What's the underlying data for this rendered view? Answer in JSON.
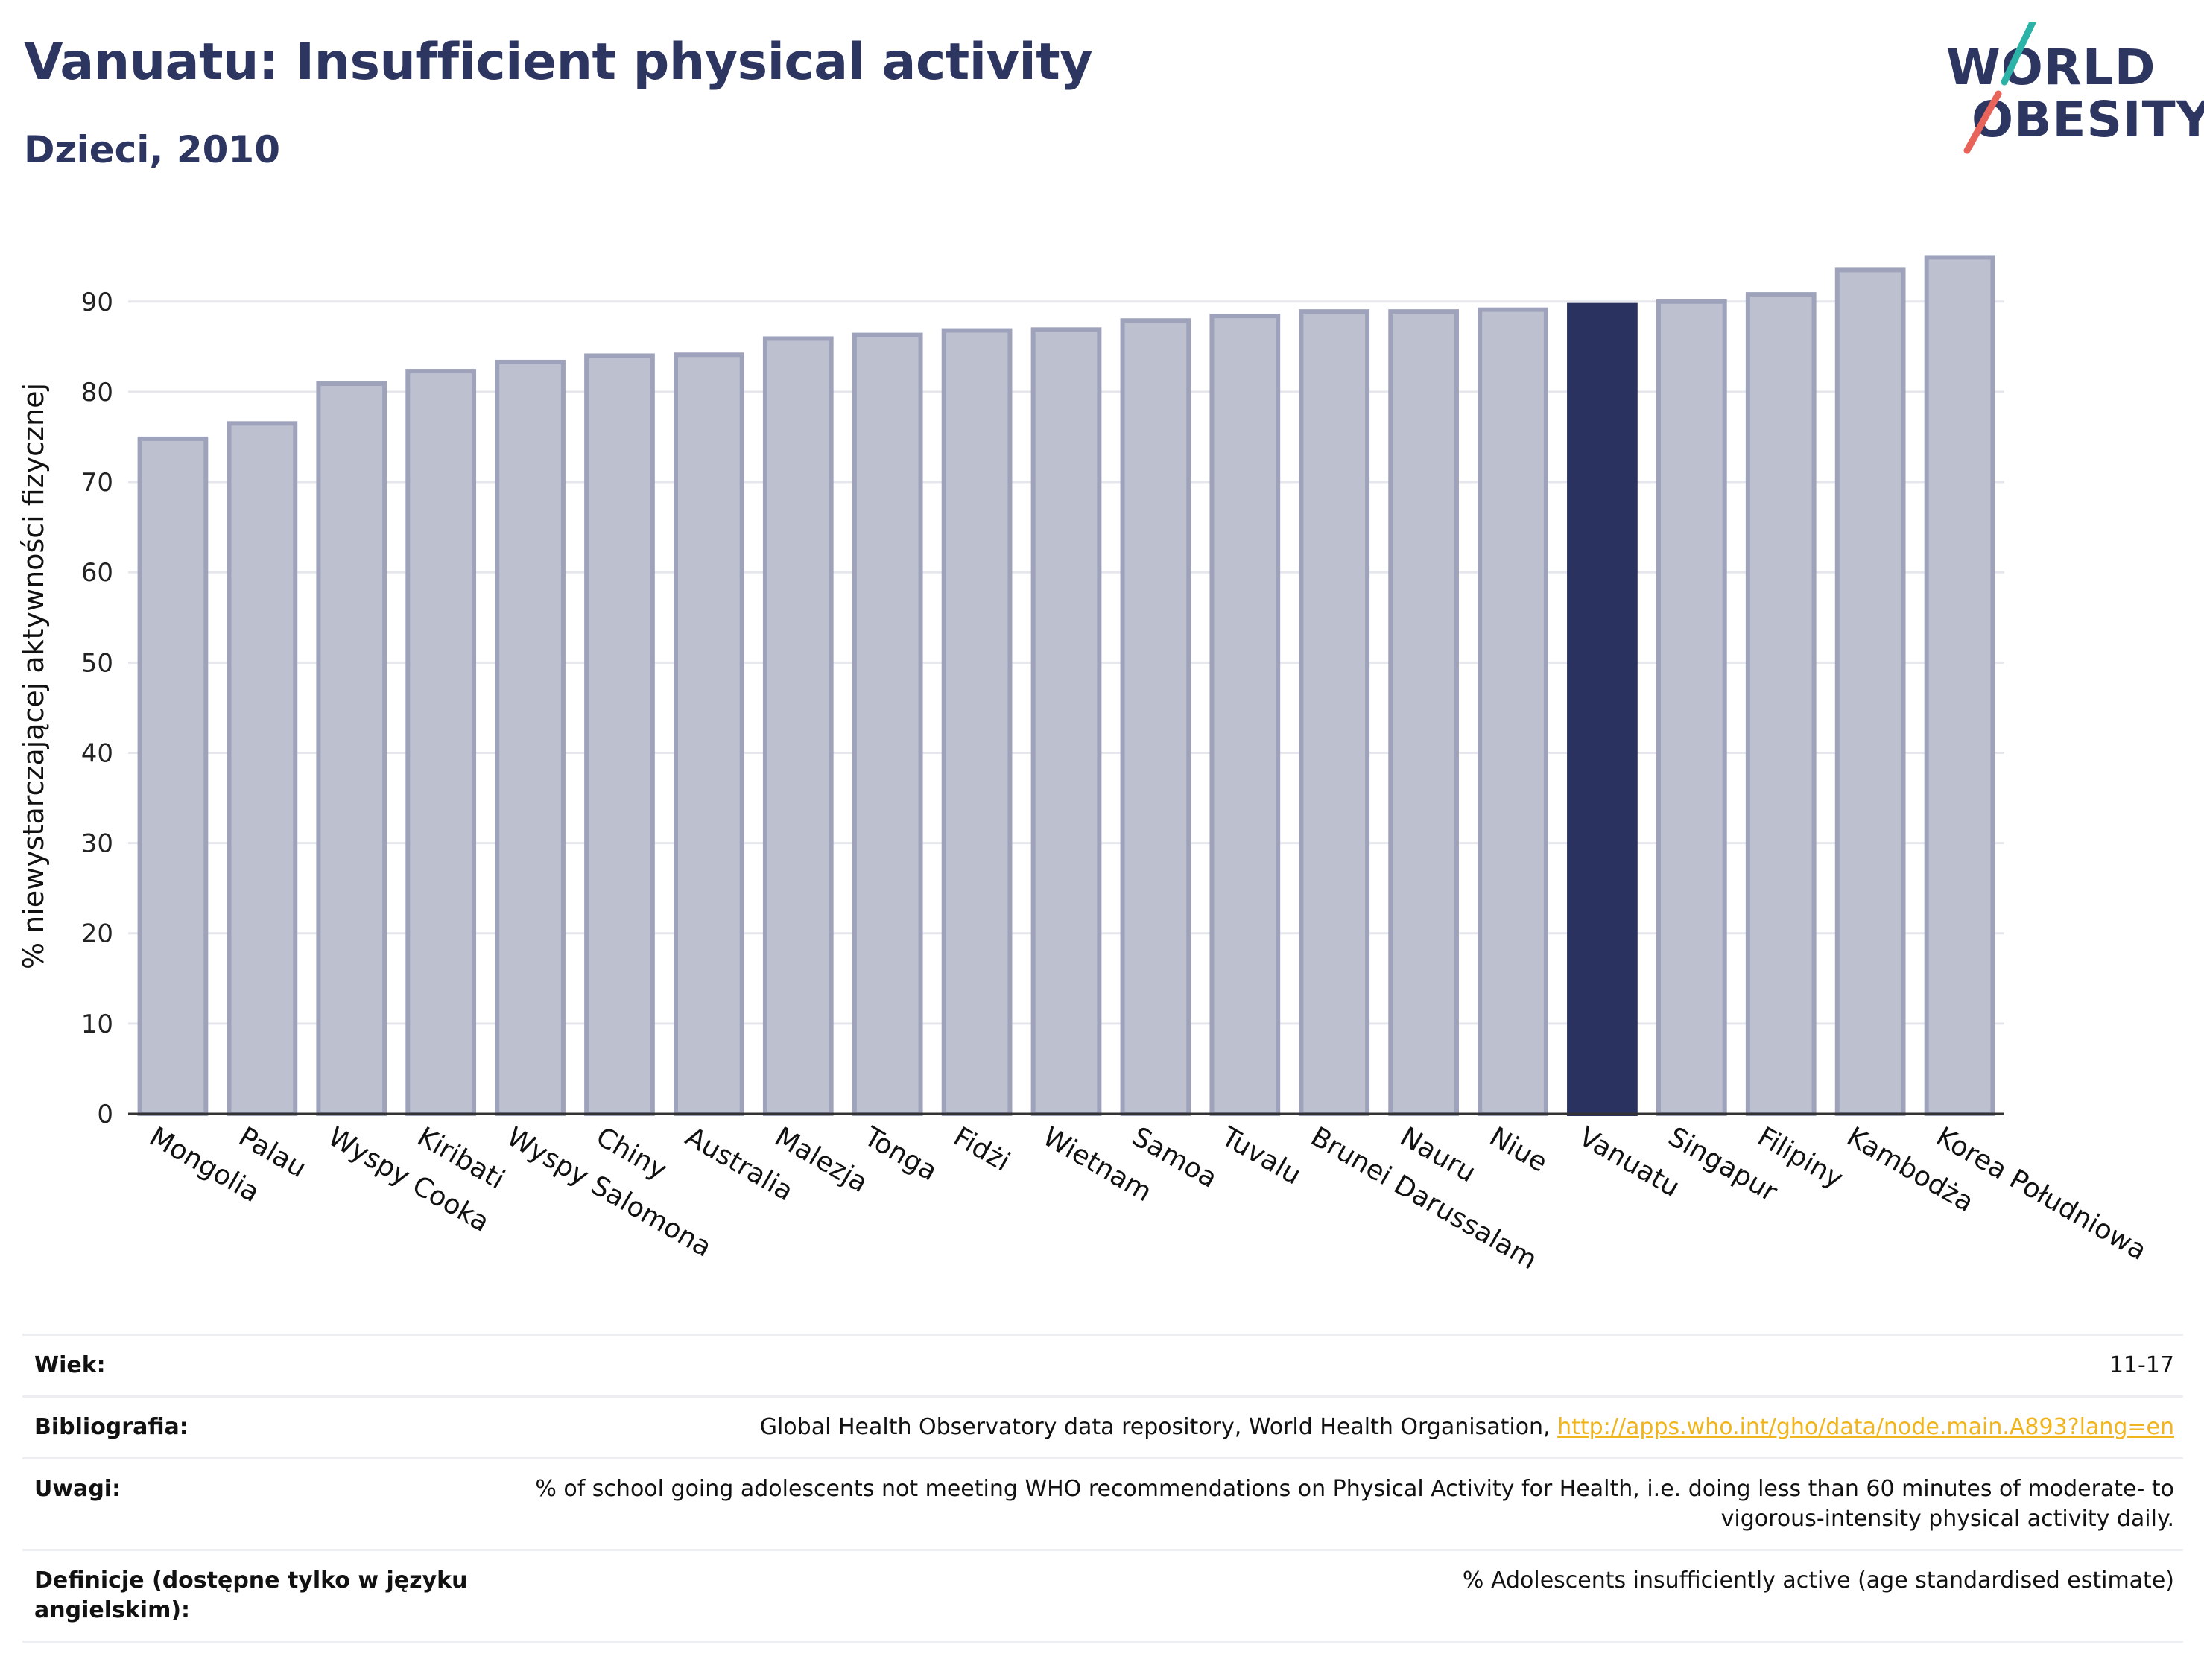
{
  "header": {
    "title": "Vanuatu: Insufficient physical activity",
    "subtitle": "Dzieci, 2010"
  },
  "logo": {
    "line1": "WORLD",
    "line2": "OBESITY",
    "colors": {
      "text": "#2d3561",
      "slash_top": "#2bb3a8",
      "slash_bottom": "#e8635a"
    }
  },
  "colors": {
    "bar_fill": "#bdc0ce",
    "bar_stroke": "#9ea3bb",
    "highlight": "#2a3360",
    "grid": "#e6e7ec",
    "link": "#f0b41c"
  },
  "chart_data": {
    "type": "bar",
    "title": "Vanuatu: Insufficient physical activity",
    "ylabel": "% niewystarczającej aktywności fizycznej",
    "xlabel": "",
    "ylim": [
      0,
      97
    ],
    "yticks": [
      0,
      10,
      20,
      30,
      40,
      50,
      60,
      70,
      80,
      90
    ],
    "grid": true,
    "highlight": "Vanuatu",
    "categories": [
      "Mongolia",
      "Palau",
      "Wyspy Cooka",
      "Kiribati",
      "Wyspy Salomona",
      "Chiny",
      "Australia",
      "Malezja",
      "Tonga",
      "Fidżi",
      "Wietnam",
      "Samoa",
      "Tuvalu",
      "Brunei Darussalam",
      "Nauru",
      "Niue",
      "Vanuatu",
      "Singapur",
      "Filipiny",
      "Kambodża",
      "Korea Południowa"
    ],
    "values": [
      74.8,
      76.5,
      80.9,
      82.3,
      83.3,
      84.0,
      84.1,
      85.9,
      86.3,
      86.8,
      86.9,
      87.9,
      88.4,
      88.9,
      88.9,
      89.1,
      89.6,
      90.0,
      90.8,
      93.5,
      94.9
    ]
  },
  "info": [
    {
      "label": "Wiek:",
      "value": "11-17"
    },
    {
      "label": "Bibliografia:",
      "value": "Global Health Observatory data repository, World Health Organisation, ",
      "link": "http://apps.who.int/gho/data/node.main.A893?lang=en"
    },
    {
      "label": "Uwagi:",
      "value": "% of school going adolescents not meeting WHO recommendations on Physical Activity for Health, i.e. doing less than 60 minutes of moderate- to vigorous-intensity physical activity daily."
    },
    {
      "label": "Definicje (dostępne tylko w języku angielskim):",
      "value": "% Adolescents insufficiently active (age standardised estimate)"
    }
  ]
}
